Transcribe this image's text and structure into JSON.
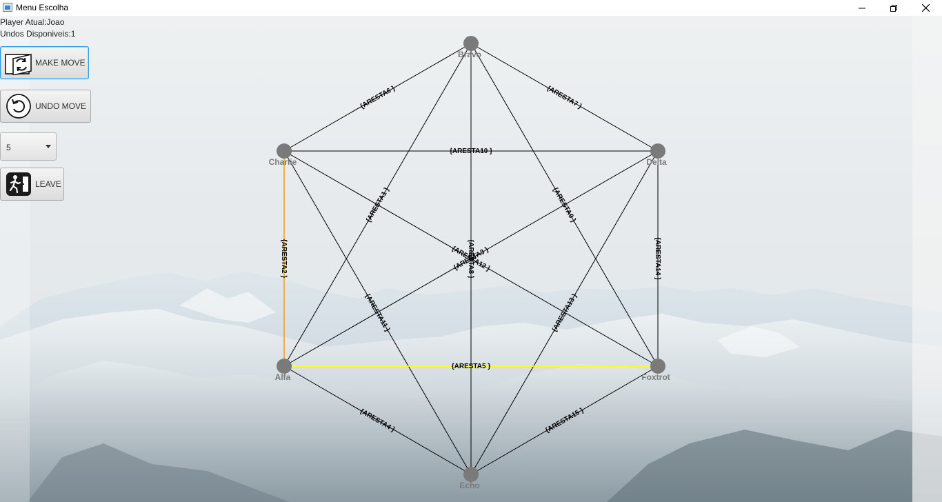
{
  "window": {
    "title": "Menu Escolha"
  },
  "status": {
    "player": "Player Atual:Joao",
    "undos": "Undos Disponiveis:1"
  },
  "controls": {
    "make_move": "MAKE MOVE",
    "undo_move": "UNDO MOVE",
    "select_value": "5",
    "leave": "LEAVE"
  },
  "graph": {
    "nodes": [
      {
        "id": "Bravo",
        "label": "Bravo"
      },
      {
        "id": "Charlie",
        "label": "Charlie"
      },
      {
        "id": "Delta",
        "label": "Delta"
      },
      {
        "id": "Alfa",
        "label": "Alfa"
      },
      {
        "id": "Foxtrot",
        "label": "Foxtrot"
      },
      {
        "id": "Echo",
        "label": "Echo"
      }
    ],
    "edges": [
      {
        "label": "{ARESTA6 }",
        "from": "Charlie",
        "to": "Bravo",
        "color": "#000000"
      },
      {
        "label": "{ARESTA7 }",
        "from": "Bravo",
        "to": "Delta",
        "color": "#000000"
      },
      {
        "label": "{ARESTA10 }",
        "from": "Charlie",
        "to": "Delta",
        "color": "#000000"
      },
      {
        "label": "{ARESTA1 }",
        "from": "Alfa",
        "to": "Bravo",
        "color": "#000000"
      },
      {
        "label": "{ARESTA9 }",
        "from": "Bravo",
        "to": "Foxtrot",
        "color": "#000000"
      },
      {
        "label": "{ARESTA2 }",
        "from": "Charlie",
        "to": "Alfa",
        "color": "#f0a020"
      },
      {
        "label": "{ARESTA14 }",
        "from": "Delta",
        "to": "Foxtrot",
        "color": "#000000"
      },
      {
        "label": "{ARESTA8 }",
        "from": "Bravo",
        "to": "Echo",
        "color": "#000000"
      },
      {
        "label": "{ARESTA3 }",
        "from": "Alfa",
        "to": "Delta",
        "color": "#000000"
      },
      {
        "label": "{ARESTA12 }",
        "from": "Charlie",
        "to": "Foxtrot",
        "color": "#000000"
      },
      {
        "label": "{ARESTA11 }",
        "from": "Charlie",
        "to": "Echo",
        "color": "#000000"
      },
      {
        "label": "{ARESTA13 }",
        "from": "Delta",
        "to": "Echo",
        "color": "#000000"
      },
      {
        "label": "{ARESTA5 }",
        "from": "Alfa",
        "to": "Foxtrot",
        "color": "#ffff00"
      },
      {
        "label": "{ARESTA4 }",
        "from": "Alfa",
        "to": "Echo",
        "color": "#000000"
      },
      {
        "label": "{ARESTA15 }",
        "from": "Foxtrot",
        "to": "Echo",
        "color": "#000000"
      }
    ]
  }
}
